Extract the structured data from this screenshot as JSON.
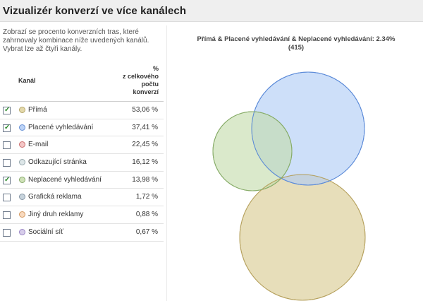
{
  "header": {
    "title": "Vizualizér konverzí ve více kanálech"
  },
  "description": "Zobrazí se procento konverzních tras, které zahrnovaly kombinace níže uvedených kanálů. Vybrat lze až čtyři kanály.",
  "table": {
    "col_channel": "Kanál",
    "col_pct_lines": [
      "%",
      "z celkového",
      "počtu",
      "konverzí"
    ],
    "rows": [
      {
        "label": "Přímá",
        "value": "53,06 %",
        "checked": true,
        "dot_fill": "#e4d9ab",
        "dot_border": "#b4a66a"
      },
      {
        "label": "Placené vyhledávání",
        "value": "37,41 %",
        "checked": true,
        "dot_fill": "#bcd3f7",
        "dot_border": "#6a93d6"
      },
      {
        "label": "E-mail",
        "value": "22,45 %",
        "checked": false,
        "dot_fill": "#f4c6c6",
        "dot_border": "#cc7070"
      },
      {
        "label": "Odkazující stránka",
        "value": "16,12 %",
        "checked": false,
        "dot_fill": "#dde6e8",
        "dot_border": "#97a8ad"
      },
      {
        "label": "Neplacené vyhledávání",
        "value": "13,98 %",
        "checked": true,
        "dot_fill": "#cfe2b8",
        "dot_border": "#86a86a"
      },
      {
        "label": "Grafická reklama",
        "value": "1,72 %",
        "checked": false,
        "dot_fill": "#c7d3dc",
        "dot_border": "#8797a6"
      },
      {
        "label": "Jiný druh reklamy",
        "value": "0,88 %",
        "checked": false,
        "dot_fill": "#f8d9be",
        "dot_border": "#d49a62"
      },
      {
        "label": "Sociální síť",
        "value": "0,67 %",
        "checked": false,
        "dot_fill": "#d7cdea",
        "dot_border": "#9a86c4"
      }
    ]
  },
  "chart": {
    "title_line1": "Přímá & Placené vyhledávání & Neplacené vyhledávání: 2.34%",
    "title_line2": "(415)"
  },
  "chart_data": {
    "type": "venn",
    "sets": [
      {
        "name": "Přímá",
        "percent": 53.06,
        "fill": "#d9c98f",
        "stroke": "#b6a15e"
      },
      {
        "name": "Placené vyhledávání",
        "percent": 37.41,
        "fill": "#aecbf6",
        "stroke": "#5b8ad8"
      },
      {
        "name": "Neplacené vyhledávání",
        "percent": 13.98,
        "fill": "#c4dcab",
        "stroke": "#86ab67"
      }
    ],
    "highlight": {
      "sets": [
        "Přímá",
        "Placené vyhledávání",
        "Neplacené vyhledávání"
      ],
      "percent": 2.34,
      "count": 415
    }
  }
}
